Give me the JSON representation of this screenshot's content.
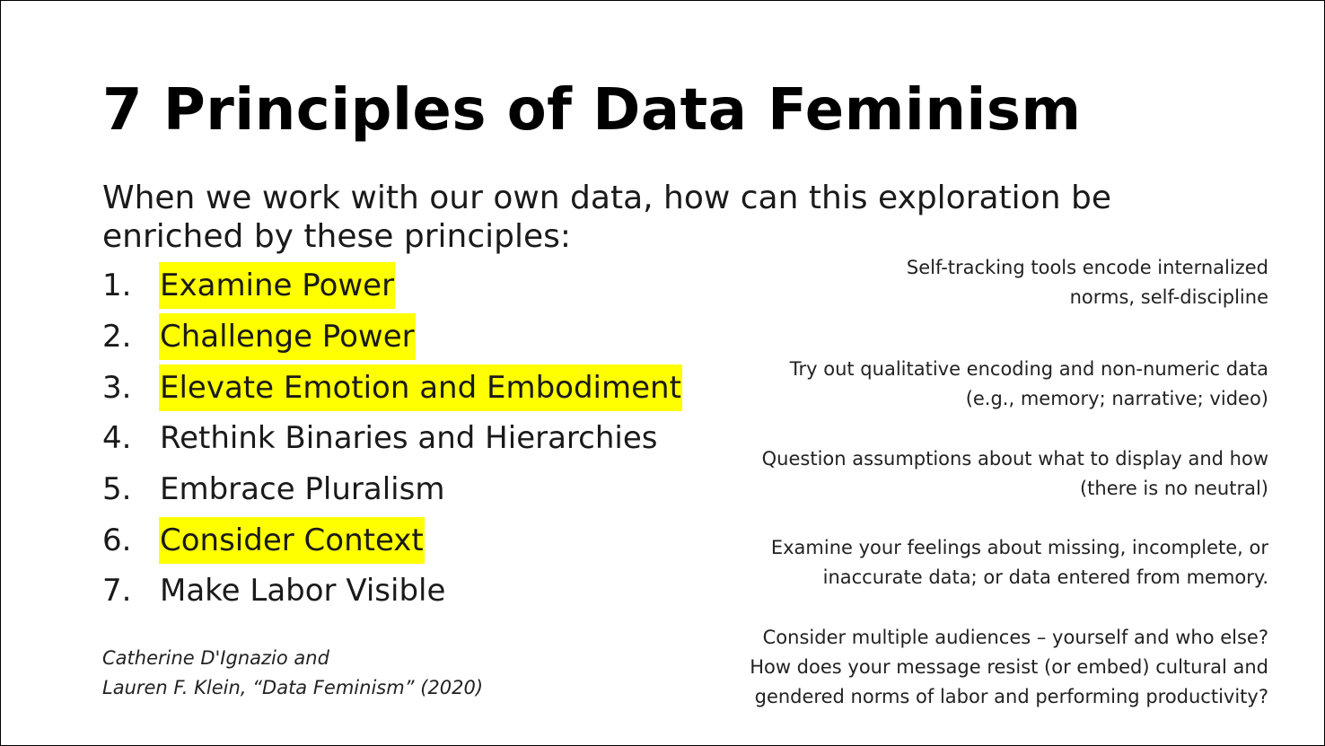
{
  "slide": {
    "title": "7 Principles of Data Feminism",
    "intro": "When we work with our own data, how can this exploration be enriched by these principles:",
    "principles": [
      {
        "num": "1.",
        "text": "Examine Power",
        "highlighted": true
      },
      {
        "num": "2.",
        "text": "Challenge Power",
        "highlighted": true
      },
      {
        "num": "3.",
        "text": "Elevate Emotion and Embodiment",
        "highlighted": true
      },
      {
        "num": "4.",
        "text": "Rethink Binaries and Hierarchies",
        "highlighted": false
      },
      {
        "num": "5.",
        "text": "Embrace Pluralism",
        "highlighted": false
      },
      {
        "num": "6.",
        "text": "Consider Context",
        "highlighted": true
      },
      {
        "num": "7.",
        "text": "Make Labor Visible",
        "highlighted": false
      }
    ],
    "citation": {
      "line1": "Catherine D'Ignazio and",
      "line2": "Lauren F. Klein, “Data Feminism” (2020)"
    },
    "notes": [
      {
        "line1": "Self-tracking tools encode internalized",
        "line2": "norms, self-discipline"
      },
      {
        "line1": "Try out qualitative encoding and non-numeric data",
        "line2": "(e.g., memory; narrative; video)"
      },
      {
        "line1": "Question assumptions about what to display and how",
        "line2": "(there is no neutral)"
      },
      {
        "line1": "Examine your feelings about missing, incomplete, or",
        "line2": "inaccurate data; or data entered from memory."
      },
      {
        "line1": "Consider multiple audiences – yourself and who else?",
        "line2": "How does your message resist (or embed) cultural and",
        "line3": "gendered norms of labor and performing productivity?"
      }
    ],
    "colors": {
      "highlight": "#ffff00",
      "text": "#000000",
      "background": "#ffffff"
    }
  }
}
